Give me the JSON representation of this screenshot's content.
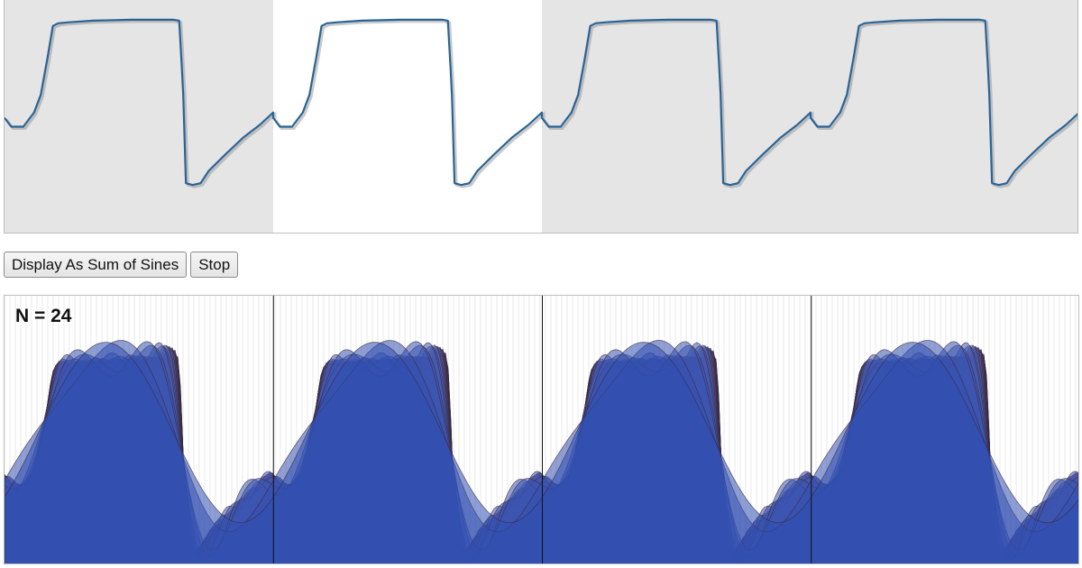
{
  "controls": {
    "display_label": "Display As Sum of Sines",
    "stop_label": "Stop"
  },
  "sum_view": {
    "n_label": "N = 24",
    "harmonics": 24
  },
  "editor": {
    "periods_shown": 4,
    "highlighted_period": 2
  },
  "colors": {
    "wave_line": "#2a6496",
    "wave_shadow": "#8a8a8a",
    "period_bg": "#e5e5e5",
    "period_highlight": "#ffffff",
    "fill_light": "#9a7fb0",
    "fill_dark": "#2f4fb0",
    "harmonic_line": "#3a2b3f",
    "divider": "#111111"
  }
}
